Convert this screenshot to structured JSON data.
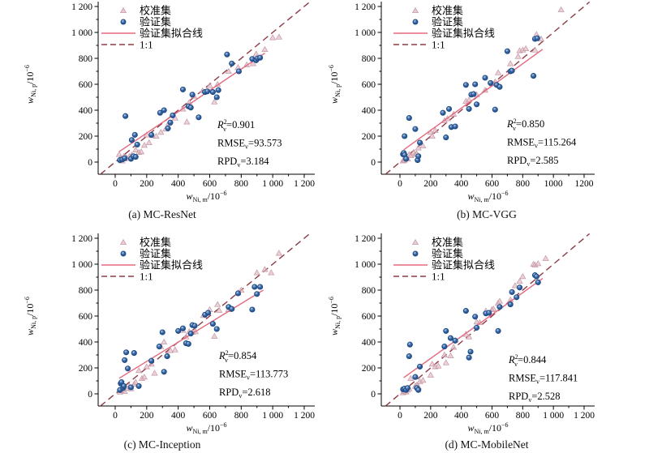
{
  "figure": {
    "background": "#ffffff"
  },
  "colors": {
    "calibration_fill": "#dfb9c3",
    "calibration_edge": "#c697a4",
    "validation_fill": "#35639f",
    "validation_edge": "#1c4a86",
    "validation_highlight": "#b9d2ee",
    "fit_line": "#e5687f",
    "identity_line": "#8c3a44",
    "axis": "#000000"
  },
  "legend": {
    "items": [
      {
        "label": "校准集",
        "type": "calibration"
      },
      {
        "label": "验证集",
        "type": "validation"
      },
      {
        "label": "验证集拟合线",
        "type": "fit"
      },
      {
        "label": "1:1",
        "type": "identity"
      }
    ]
  },
  "axis": {
    "xlabel": {
      "var": "w",
      "sub": "Ni, m",
      "unit": "/10",
      "exp": "−6"
    },
    "ylabel": {
      "var": "w",
      "sub": "Ni, p",
      "unit": "/10",
      "exp": "−6"
    },
    "xlim": [
      -100,
      1250
    ],
    "ylim": [
      -100,
      1250
    ],
    "tick_values": [
      0,
      200,
      400,
      600,
      800,
      1000,
      1200
    ]
  },
  "stats_labels": {
    "r2_base": "R",
    "r2_sup": "2",
    "sub": "v",
    "rmse_base": "RMSE",
    "rpd_base": "RPD",
    "eq": "="
  },
  "chart_data": [
    {
      "type": "scatter",
      "caption": "(a) MC-ResNet",
      "stats": {
        "r2": "0.901",
        "rmse": "93.573",
        "rpd": "3.184"
      },
      "xtick_labels": [
        "0",
        "200",
        "400",
        "600",
        "800",
        "1 000",
        "1 200"
      ],
      "ytick_labels": [
        "0",
        "200",
        "400",
        "600",
        "800",
        "1 000",
        "1 200"
      ],
      "fit_line": {
        "x1": 25,
        "y1": 80,
        "x2": 950,
        "y2": 840
      },
      "validation": [
        [
          30,
          15
        ],
        [
          45,
          20
        ],
        [
          60,
          30
        ],
        [
          100,
          25
        ],
        [
          115,
          45
        ],
        [
          130,
          40
        ],
        [
          105,
          170
        ],
        [
          125,
          210
        ],
        [
          65,
          355
        ],
        [
          140,
          135
        ],
        [
          230,
          210
        ],
        [
          285,
          380
        ],
        [
          310,
          400
        ],
        [
          335,
          260
        ],
        [
          350,
          305
        ],
        [
          365,
          360
        ],
        [
          430,
          560
        ],
        [
          465,
          430
        ],
        [
          480,
          420
        ],
        [
          490,
          520
        ],
        [
          530,
          345
        ],
        [
          570,
          540
        ],
        [
          585,
          545
        ],
        [
          620,
          540
        ],
        [
          645,
          500
        ],
        [
          655,
          555
        ],
        [
          710,
          830
        ],
        [
          740,
          760
        ],
        [
          785,
          700
        ],
        [
          870,
          795
        ],
        [
          895,
          785
        ],
        [
          905,
          800
        ],
        [
          920,
          805
        ]
      ],
      "calibration": [
        [
          25,
          60
        ],
        [
          35,
          30
        ],
        [
          45,
          10
        ],
        [
          55,
          45
        ],
        [
          60,
          25
        ],
        [
          70,
          35
        ],
        [
          90,
          45
        ],
        [
          105,
          55
        ],
        [
          130,
          95
        ],
        [
          150,
          75
        ],
        [
          165,
          80
        ],
        [
          185,
          130
        ],
        [
          200,
          210
        ],
        [
          215,
          150
        ],
        [
          235,
          205
        ],
        [
          260,
          200
        ],
        [
          290,
          230
        ],
        [
          320,
          255
        ],
        [
          340,
          300
        ],
        [
          380,
          340
        ],
        [
          430,
          410
        ],
        [
          455,
          310
        ],
        [
          470,
          460
        ],
        [
          500,
          510
        ],
        [
          555,
          550
        ],
        [
          600,
          590
        ],
        [
          630,
          465
        ],
        [
          650,
          600
        ],
        [
          720,
          700
        ],
        [
          780,
          730
        ],
        [
          835,
          750
        ],
        [
          875,
          760
        ],
        [
          895,
          835
        ],
        [
          950,
          870
        ],
        [
          1000,
          960
        ],
        [
          1040,
          965
        ]
      ]
    },
    {
      "type": "scatter",
      "caption": "(b) MC-VGG",
      "stats": {
        "r2": "0.850",
        "rmse": "115.264",
        "rpd": "2.585"
      },
      "xtick_labels": [
        "0",
        "200",
        "400",
        "600",
        "800",
        "1000",
        "1200"
      ],
      "ytick_labels": [
        "0",
        "200",
        "400",
        "600",
        "800",
        "1 000",
        "1 200"
      ],
      "fit_line": {
        "x1": 25,
        "y1": 95,
        "x2": 930,
        "y2": 870
      },
      "validation": [
        [
          20,
          60
        ],
        [
          25,
          70
        ],
        [
          30,
          55
        ],
        [
          40,
          25
        ],
        [
          30,
          200
        ],
        [
          60,
          340
        ],
        [
          100,
          255
        ],
        [
          115,
          15
        ],
        [
          120,
          45
        ],
        [
          130,
          150
        ],
        [
          280,
          380
        ],
        [
          300,
          190
        ],
        [
          320,
          410
        ],
        [
          335,
          270
        ],
        [
          360,
          275
        ],
        [
          430,
          595
        ],
        [
          450,
          410
        ],
        [
          465,
          520
        ],
        [
          480,
          525
        ],
        [
          490,
          600
        ],
        [
          500,
          445
        ],
        [
          555,
          650
        ],
        [
          590,
          610
        ],
        [
          620,
          405
        ],
        [
          630,
          595
        ],
        [
          650,
          580
        ],
        [
          700,
          855
        ],
        [
          720,
          700
        ],
        [
          730,
          705
        ],
        [
          870,
          665
        ],
        [
          880,
          950
        ],
        [
          895,
          955
        ]
      ],
      "calibration": [
        [
          20,
          10
        ],
        [
          25,
          20
        ],
        [
          30,
          15
        ],
        [
          35,
          30
        ],
        [
          45,
          35
        ],
        [
          50,
          25
        ],
        [
          60,
          60
        ],
        [
          70,
          50
        ],
        [
          90,
          75
        ],
        [
          100,
          60
        ],
        [
          110,
          65
        ],
        [
          120,
          110
        ],
        [
          150,
          125
        ],
        [
          200,
          230
        ],
        [
          210,
          200
        ],
        [
          230,
          245
        ],
        [
          290,
          320
        ],
        [
          310,
          335
        ],
        [
          350,
          370
        ],
        [
          430,
          470
        ],
        [
          450,
          480
        ],
        [
          500,
          520
        ],
        [
          555,
          555
        ],
        [
          600,
          605
        ],
        [
          620,
          620
        ],
        [
          640,
          690
        ],
        [
          720,
          760
        ],
        [
          770,
          815
        ],
        [
          780,
          860
        ],
        [
          800,
          865
        ],
        [
          820,
          875
        ],
        [
          880,
          865
        ],
        [
          890,
          985
        ],
        [
          920,
          950
        ],
        [
          1050,
          1175
        ]
      ]
    },
    {
      "type": "scatter",
      "caption": "(c) MC-Inception",
      "stats": {
        "r2": "0.854",
        "rmse": "113.773",
        "rpd": "2.618"
      },
      "xtick_labels": [
        "0",
        "200",
        "400",
        "600",
        "800",
        "1 000",
        "1 200"
      ],
      "ytick_labels": [
        "0",
        "200",
        "400",
        "600",
        "800",
        "1 000",
        "1 200"
      ],
      "fit_line": {
        "x1": 25,
        "y1": 120,
        "x2": 940,
        "y2": 800
      },
      "validation": [
        [
          30,
          30
        ],
        [
          35,
          80
        ],
        [
          40,
          90
        ],
        [
          50,
          45
        ],
        [
          55,
          60
        ],
        [
          60,
          260
        ],
        [
          70,
          320
        ],
        [
          80,
          195
        ],
        [
          100,
          50
        ],
        [
          120,
          315
        ],
        [
          150,
          60
        ],
        [
          230,
          255
        ],
        [
          280,
          365
        ],
        [
          300,
          475
        ],
        [
          310,
          170
        ],
        [
          330,
          290
        ],
        [
          400,
          485
        ],
        [
          430,
          505
        ],
        [
          450,
          390
        ],
        [
          465,
          385
        ],
        [
          480,
          465
        ],
        [
          490,
          530
        ],
        [
          505,
          525
        ],
        [
          570,
          610
        ],
        [
          590,
          625
        ],
        [
          620,
          540
        ],
        [
          645,
          500
        ],
        [
          720,
          670
        ],
        [
          740,
          655
        ],
        [
          780,
          775
        ],
        [
          870,
          650
        ],
        [
          885,
          825
        ],
        [
          900,
          770
        ],
        [
          920,
          825
        ]
      ],
      "calibration": [
        [
          30,
          15
        ],
        [
          40,
          25
        ],
        [
          50,
          35
        ],
        [
          60,
          20
        ],
        [
          70,
          45
        ],
        [
          90,
          60
        ],
        [
          100,
          40
        ],
        [
          120,
          75
        ],
        [
          130,
          90
        ],
        [
          150,
          180
        ],
        [
          170,
          120
        ],
        [
          185,
          130
        ],
        [
          200,
          210
        ],
        [
          230,
          230
        ],
        [
          250,
          160
        ],
        [
          290,
          365
        ],
        [
          310,
          400
        ],
        [
          330,
          300
        ],
        [
          350,
          335
        ],
        [
          380,
          340
        ],
        [
          430,
          490
        ],
        [
          450,
          440
        ],
        [
          470,
          480
        ],
        [
          490,
          475
        ],
        [
          510,
          480
        ],
        [
          560,
          605
        ],
        [
          600,
          650
        ],
        [
          630,
          445
        ],
        [
          650,
          690
        ],
        [
          660,
          645
        ],
        [
          720,
          650
        ],
        [
          780,
          780
        ],
        [
          800,
          800
        ],
        [
          900,
          935
        ],
        [
          950,
          960
        ],
        [
          990,
          935
        ],
        [
          1040,
          1085
        ]
      ]
    },
    {
      "type": "scatter",
      "caption": "(d) MC-MobileNet",
      "stats": {
        "r2": "0.844",
        "rmse": "117.841",
        "rpd": "2.528"
      },
      "xtick_labels": [
        "0",
        "200",
        "400",
        "600",
        "800",
        "1 000",
        "1 200"
      ],
      "ytick_labels": [
        "0",
        "200",
        "400",
        "600",
        "800",
        "1 000",
        "1 200"
      ],
      "fit_line": {
        "x1": 25,
        "y1": 125,
        "x2": 930,
        "y2": 890
      },
      "validation": [
        [
          20,
          35
        ],
        [
          30,
          40
        ],
        [
          40,
          30
        ],
        [
          50,
          45
        ],
        [
          60,
          290
        ],
        [
          65,
          380
        ],
        [
          100,
          130
        ],
        [
          110,
          45
        ],
        [
          120,
          30
        ],
        [
          130,
          210
        ],
        [
          290,
          365
        ],
        [
          300,
          485
        ],
        [
          330,
          430
        ],
        [
          360,
          410
        ],
        [
          430,
          640
        ],
        [
          450,
          280
        ],
        [
          460,
          325
        ],
        [
          490,
          595
        ],
        [
          500,
          510
        ],
        [
          560,
          620
        ],
        [
          580,
          625
        ],
        [
          640,
          485
        ],
        [
          650,
          670
        ],
        [
          720,
          690
        ],
        [
          730,
          785
        ],
        [
          760,
          745
        ],
        [
          780,
          820
        ],
        [
          880,
          915
        ],
        [
          890,
          905
        ],
        [
          900,
          860
        ]
      ],
      "calibration": [
        [
          20,
          10
        ],
        [
          30,
          20
        ],
        [
          40,
          15
        ],
        [
          50,
          30
        ],
        [
          60,
          40
        ],
        [
          70,
          120
        ],
        [
          100,
          60
        ],
        [
          110,
          70
        ],
        [
          120,
          55
        ],
        [
          130,
          95
        ],
        [
          150,
          105
        ],
        [
          200,
          145
        ],
        [
          210,
          230
        ],
        [
          230,
          210
        ],
        [
          250,
          215
        ],
        [
          290,
          300
        ],
        [
          300,
          240
        ],
        [
          330,
          295
        ],
        [
          350,
          360
        ],
        [
          360,
          415
        ],
        [
          430,
          460
        ],
        [
          450,
          440
        ],
        [
          500,
          555
        ],
        [
          520,
          550
        ],
        [
          560,
          640
        ],
        [
          600,
          650
        ],
        [
          610,
          655
        ],
        [
          640,
          700
        ],
        [
          650,
          715
        ],
        [
          720,
          725
        ],
        [
          750,
          835
        ],
        [
          780,
          870
        ],
        [
          800,
          905
        ],
        [
          870,
          1000
        ],
        [
          880,
          995
        ],
        [
          900,
          1005
        ],
        [
          950,
          1045
        ]
      ]
    }
  ]
}
